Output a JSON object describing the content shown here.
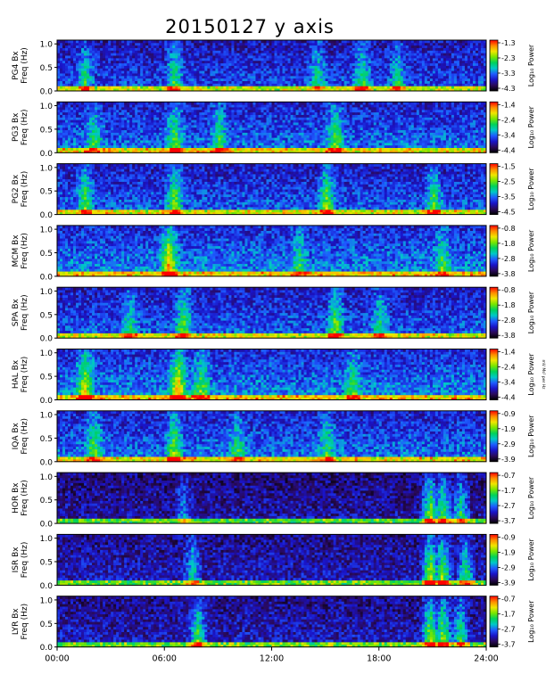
{
  "title": "20150127 y axis",
  "colorbar_label": "Log₁₀ Power",
  "side_note": "mV Ms² per Hz",
  "ylabel_suffix": "Freq (Hz)",
  "chart_data": {
    "type": "heatmap",
    "title": "20150127 y axis",
    "xlabel": "",
    "x_ticks": [
      "00:00",
      "06:00",
      "12:00",
      "18:00",
      "24:00"
    ],
    "xlim_hours": [
      0,
      24
    ],
    "y_ticks": [
      "0.0",
      "0.5",
      "1.0"
    ],
    "ylim": [
      0,
      1.0
    ],
    "colormap": [
      "#000000",
      "#2a0a5a",
      "#1a14c8",
      "#1e5aff",
      "#00c8c8",
      "#00d25a",
      "#78e600",
      "#f0e600",
      "#ff8c00",
      "#ff0000"
    ],
    "panels": [
      {
        "station": "PG4",
        "ylabel": "PG4 Bx",
        "cbar_ticks": [
          "-1.3",
          "-2.3",
          "-3.3",
          "-4.3"
        ],
        "intensity": 0.45,
        "bursts": [
          [
            1.5,
            0.5
          ],
          [
            6.5,
            0.6
          ],
          [
            14.5,
            0.5
          ],
          [
            17.0,
            0.6
          ],
          [
            19.0,
            0.5
          ]
        ]
      },
      {
        "station": "PG3",
        "ylabel": "PG3 Bx",
        "cbar_ticks": [
          "-1.4",
          "-2.4",
          "-3.4",
          "-4.4"
        ],
        "intensity": 0.55,
        "bursts": [
          [
            2.0,
            0.5
          ],
          [
            6.5,
            0.6
          ],
          [
            9.0,
            0.5
          ],
          [
            15.5,
            0.6
          ]
        ]
      },
      {
        "station": "PG2",
        "ylabel": "PG2 Bx",
        "cbar_ticks": [
          "-1.5",
          "-2.5",
          "-3.5",
          "-4.5"
        ],
        "intensity": 0.5,
        "bursts": [
          [
            1.5,
            0.6
          ],
          [
            6.5,
            0.7
          ],
          [
            15.0,
            0.7
          ],
          [
            21.0,
            0.6
          ]
        ]
      },
      {
        "station": "MCM",
        "ylabel": "MCM Bx",
        "cbar_ticks": [
          "-0.8",
          "-1.8",
          "-2.8",
          "-3.8"
        ],
        "intensity": 0.6,
        "bursts": [
          [
            6.2,
            1.0
          ],
          [
            13.5,
            0.4
          ],
          [
            21.5,
            0.5
          ]
        ]
      },
      {
        "station": "SPA",
        "ylabel": "SPA Bx",
        "cbar_ticks": [
          "-0.8",
          "-1.8",
          "-2.8",
          "-3.8"
        ],
        "intensity": 0.5,
        "bursts": [
          [
            4.0,
            0.5
          ],
          [
            7.0,
            0.7
          ],
          [
            15.5,
            0.7
          ],
          [
            18.0,
            0.5
          ]
        ]
      },
      {
        "station": "HAL",
        "ylabel": "HAL Bx",
        "cbar_ticks": [
          "-1.4",
          "-2.4",
          "-3.4",
          "-4.4"
        ],
        "intensity": 0.6,
        "bursts": [
          [
            1.5,
            0.8
          ],
          [
            6.7,
            1.0
          ],
          [
            8.0,
            0.6
          ],
          [
            16.5,
            0.5
          ]
        ]
      },
      {
        "station": "IQA",
        "ylabel": "IQA Bx",
        "cbar_ticks": [
          "-0.9",
          "-1.9",
          "-2.9",
          "-3.9"
        ],
        "intensity": 0.55,
        "bursts": [
          [
            2.0,
            0.6
          ],
          [
            6.5,
            0.7
          ],
          [
            10.0,
            0.5
          ],
          [
            15.0,
            0.5
          ]
        ]
      },
      {
        "station": "HOR",
        "ylabel": "HOR Bx",
        "cbar_ticks": [
          "-0.7",
          "-1.7",
          "-2.7",
          "-3.7"
        ],
        "intensity": 0.25,
        "bursts": [
          [
            7.0,
            0.4
          ],
          [
            20.8,
            1.0
          ],
          [
            21.5,
            0.9
          ],
          [
            22.5,
            0.7
          ]
        ]
      },
      {
        "station": "ISR",
        "ylabel": "ISR Bx",
        "cbar_ticks": [
          "-0.9",
          "-1.9",
          "-2.9",
          "-3.9"
        ],
        "intensity": 0.3,
        "bursts": [
          [
            7.5,
            0.6
          ],
          [
            20.8,
            1.0
          ],
          [
            21.5,
            0.9
          ],
          [
            22.8,
            0.7
          ]
        ]
      },
      {
        "station": "LYR",
        "ylabel": "LYR Bx",
        "cbar_ticks": [
          "-0.7",
          "-1.7",
          "-2.7",
          "-3.7"
        ],
        "intensity": 0.3,
        "bursts": [
          [
            7.8,
            0.8
          ],
          [
            20.8,
            1.0
          ],
          [
            21.5,
            0.9
          ],
          [
            22.5,
            0.7
          ]
        ]
      }
    ]
  }
}
